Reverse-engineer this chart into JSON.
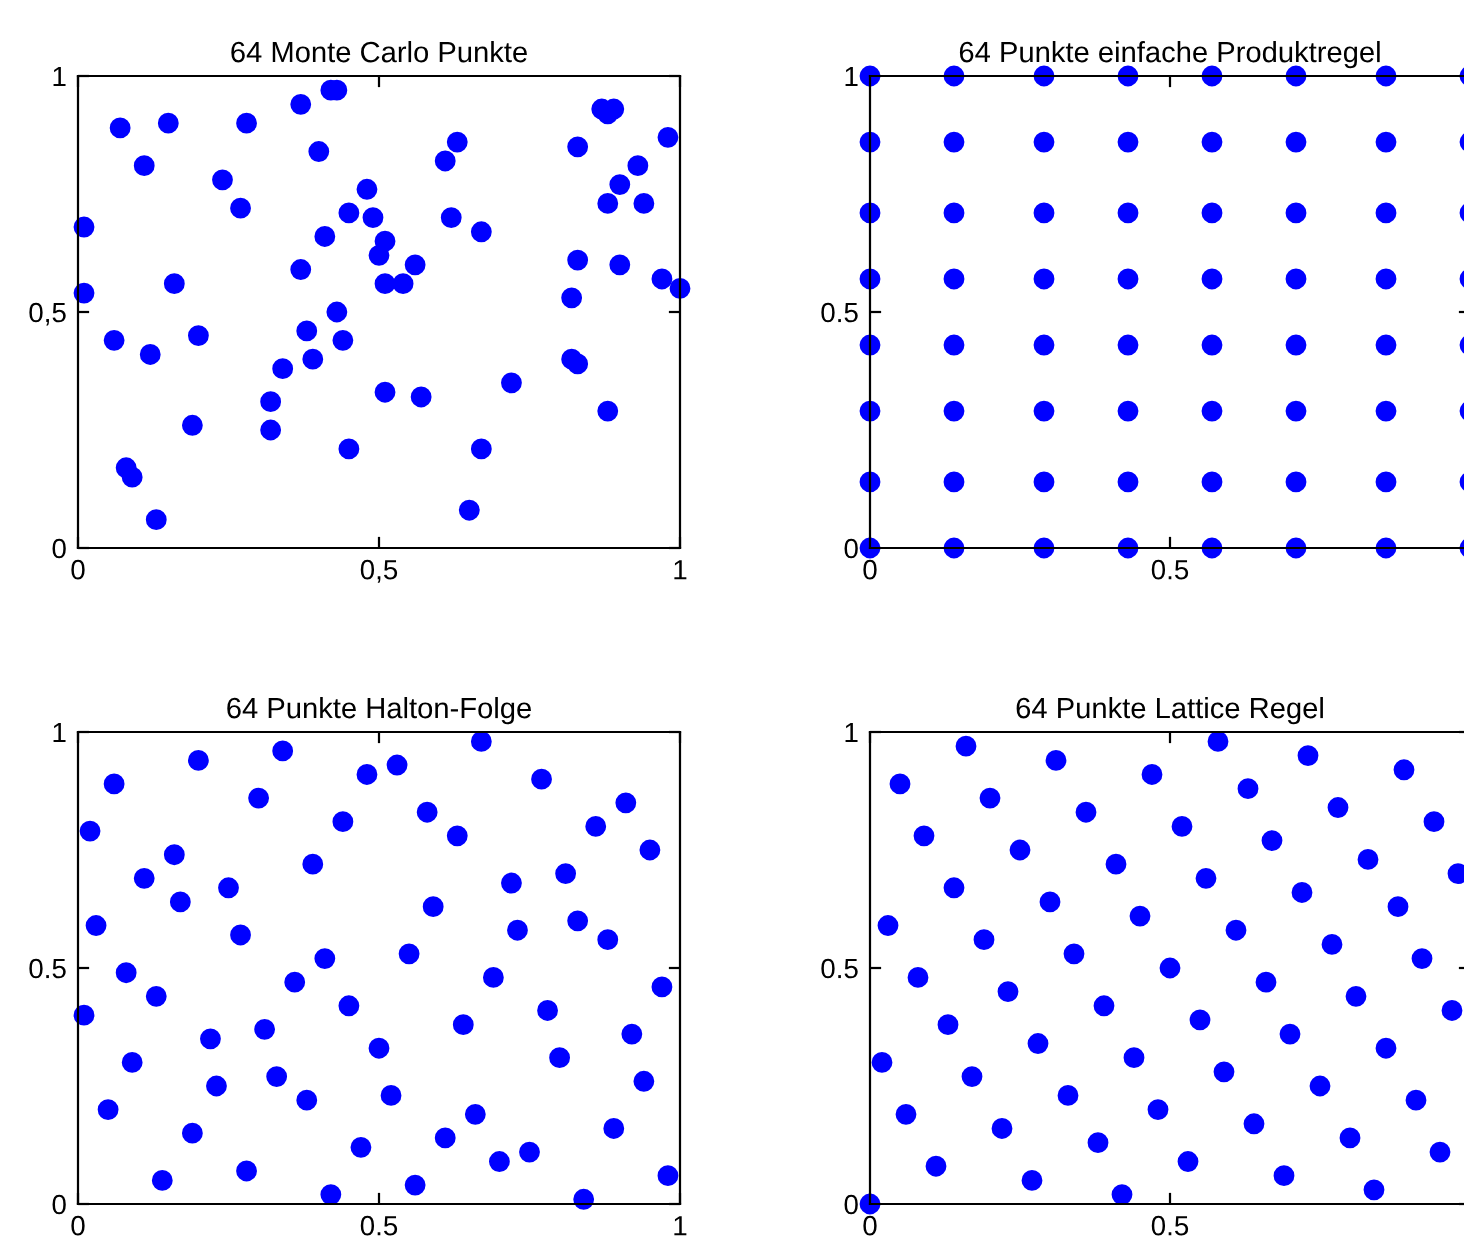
{
  "chart_data": [
    {
      "type": "scatter",
      "title": "64 Monte Carlo Punkte",
      "xlim": [
        0,
        1
      ],
      "ylim": [
        0,
        1
      ],
      "xticks": [
        0,
        {
          "value": 0.5,
          "label": "0,5"
        },
        1
      ],
      "yticks": [
        0,
        {
          "value": 0.5,
          "label": "0,5"
        },
        1
      ],
      "grid": false,
      "marker": "circle",
      "series": [
        {
          "color": "#0000ff",
          "x": [
            0.01,
            0.01,
            0.07,
            0.15,
            0.11,
            0.24,
            0.28,
            0.27,
            0.37,
            0.42,
            0.43,
            0.4,
            0.16,
            0.06,
            0.12,
            0.2,
            0.19,
            0.08,
            0.09,
            0.13,
            0.32,
            0.32,
            0.34,
            0.38,
            0.39,
            0.43,
            0.44,
            0.37,
            0.41,
            0.45,
            0.48,
            0.49,
            0.51,
            0.5,
            0.51,
            0.54,
            0.56,
            0.51,
            0.57,
            0.45,
            0.61,
            0.63,
            0.62,
            0.67,
            0.67,
            0.65,
            0.72,
            0.83,
            0.83,
            0.82,
            0.82,
            0.83,
            0.87,
            0.89,
            0.88,
            0.88,
            0.9,
            0.93,
            0.94,
            0.9,
            0.88,
            0.98,
            0.97,
            1.0
          ],
          "values": [
            0.68,
            0.54,
            0.89,
            0.9,
            0.81,
            0.78,
            0.9,
            0.72,
            0.94,
            0.97,
            0.97,
            0.84,
            0.56,
            0.44,
            0.41,
            0.45,
            0.26,
            0.17,
            0.15,
            0.06,
            0.31,
            0.25,
            0.38,
            0.46,
            0.4,
            0.5,
            0.44,
            0.59,
            0.66,
            0.71,
            0.76,
            0.7,
            0.65,
            0.62,
            0.56,
            0.56,
            0.6,
            0.33,
            0.32,
            0.21,
            0.82,
            0.86,
            0.7,
            0.67,
            0.21,
            0.08,
            0.35,
            0.85,
            0.61,
            0.53,
            0.4,
            0.39,
            0.93,
            0.93,
            0.92,
            0.73,
            0.77,
            0.81,
            0.73,
            0.6,
            0.29,
            0.87,
            0.57,
            0.55
          ]
        }
      ]
    },
    {
      "type": "scatter",
      "title": "64 Punkte einfache Produktregel",
      "xlim": [
        0,
        1
      ],
      "ylim": [
        0,
        1
      ],
      "xticks": [
        0,
        0.5
      ],
      "yticks": [
        0,
        0.5,
        1
      ],
      "grid": false,
      "marker": "circle",
      "series": [
        {
          "color": "#0000ff",
          "x": [
            0,
            0,
            0,
            0,
            0,
            0,
            0,
            0,
            0.14,
            0.14,
            0.14,
            0.14,
            0.14,
            0.14,
            0.14,
            0.14,
            0.29,
            0.29,
            0.29,
            0.29,
            0.29,
            0.29,
            0.29,
            0.29,
            0.43,
            0.43,
            0.43,
            0.43,
            0.43,
            0.43,
            0.43,
            0.43,
            0.57,
            0.57,
            0.57,
            0.57,
            0.57,
            0.57,
            0.57,
            0.57,
            0.71,
            0.71,
            0.71,
            0.71,
            0.71,
            0.71,
            0.71,
            0.71,
            0.86,
            0.86,
            0.86,
            0.86,
            0.86,
            0.86,
            0.86,
            0.86,
            1,
            1,
            1,
            1,
            1,
            1,
            1,
            1
          ],
          "values": [
            0,
            0.14,
            0.29,
            0.43,
            0.57,
            0.71,
            0.86,
            1,
            0,
            0.14,
            0.29,
            0.43,
            0.57,
            0.71,
            0.86,
            1,
            0,
            0.14,
            0.29,
            0.43,
            0.57,
            0.71,
            0.86,
            1,
            0,
            0.14,
            0.29,
            0.43,
            0.57,
            0.71,
            0.86,
            1,
            0,
            0.14,
            0.29,
            0.43,
            0.57,
            0.71,
            0.86,
            1,
            0,
            0.14,
            0.29,
            0.43,
            0.57,
            0.71,
            0.86,
            1,
            0,
            0.14,
            0.29,
            0.43,
            0.57,
            0.71,
            0.86,
            1,
            0,
            0.14,
            0.29,
            0.43,
            0.57,
            0.71,
            0.86,
            1
          ]
        }
      ]
    },
    {
      "type": "scatter",
      "title": "64 Punkte Halton-Folge",
      "xlim": [
        0,
        1
      ],
      "ylim": [
        0,
        1
      ],
      "xticks": [
        0,
        0.5,
        1
      ],
      "yticks": [
        0,
        0.5,
        1
      ],
      "grid": false,
      "marker": "circle",
      "series": [
        {
          "color": "#0000ff",
          "x": [
            0.5,
            0.25,
            0.75,
            0.13,
            0.63,
            0.38,
            0.88,
            0.06,
            0.56,
            0.31,
            0.81,
            0.19,
            0.69,
            0.44,
            0.94,
            0.03,
            0.53,
            0.28,
            0.78,
            0.16,
            0.66,
            0.41,
            0.91,
            0.09,
            0.59,
            0.34,
            0.84,
            0.22,
            0.72,
            0.47,
            0.97,
            0.02,
            0.52,
            0.27,
            0.77,
            0.14,
            0.64,
            0.39,
            0.89,
            0.08,
            0.58,
            0.33,
            0.83,
            0.2,
            0.7,
            0.45,
            0.95,
            0.05,
            0.55,
            0.3,
            0.8,
            0.17,
            0.67,
            0.42,
            0.92,
            0.11,
            0.61,
            0.36,
            0.86,
            0.23,
            0.73,
            0.48,
            0.98,
            0.01
          ],
          "values": [
            0.33,
            0.67,
            0.11,
            0.44,
            0.78,
            0.22,
            0.56,
            0.89,
            0.04,
            0.37,
            0.7,
            0.15,
            0.48,
            0.81,
            0.26,
            0.59,
            0.93,
            0.07,
            0.41,
            0.74,
            0.19,
            0.52,
            0.85,
            0.3,
            0.63,
            0.96,
            0.01,
            0.35,
            0.68,
            0.12,
            0.46,
            0.79,
            0.23,
            0.57,
            0.9,
            0.05,
            0.38,
            0.72,
            0.16,
            0.49,
            0.83,
            0.27,
            0.6,
            0.94,
            0.09,
            0.42,
            0.75,
            0.2,
            0.53,
            0.86,
            0.31,
            0.64,
            0.98,
            0.02,
            0.36,
            0.69,
            0.14,
            0.47,
            0.8,
            0.25,
            0.58,
            0.91,
            0.06,
            0.4
          ]
        }
      ]
    },
    {
      "type": "scatter",
      "title": "64 Punkte Lattice Regel",
      "xlim": [
        0,
        1
      ],
      "ylim": [
        0,
        1
      ],
      "xticks": [
        0,
        0.5
      ],
      "yticks": [
        0,
        0.5,
        1
      ],
      "grid": false,
      "marker": "circle",
      "series": [
        {
          "color": "#0000ff",
          "x": [
            0,
            0.02,
            0.03,
            0.05,
            0.06,
            0.08,
            0.09,
            0.11,
            0.13,
            0.14,
            0.16,
            0.17,
            0.19,
            0.2,
            0.22,
            0.23,
            0.25,
            0.27,
            0.28,
            0.3,
            0.31,
            0.33,
            0.34,
            0.36,
            0.38,
            0.39,
            0.41,
            0.42,
            0.44,
            0.45,
            0.47,
            0.48,
            0.5,
            0.52,
            0.53,
            0.55,
            0.56,
            0.58,
            0.59,
            0.61,
            0.63,
            0.64,
            0.66,
            0.67,
            0.69,
            0.7,
            0.72,
            0.73,
            0.75,
            0.77,
            0.78,
            0.8,
            0.81,
            0.83,
            0.84,
            0.86,
            0.88,
            0.89,
            0.91,
            0.92,
            0.94,
            0.95,
            0.97,
            0.98
          ],
          "values": [
            0,
            0.3,
            0.59,
            0.89,
            0.19,
            0.48,
            0.78,
            0.08,
            0.38,
            0.67,
            0.97,
            0.27,
            0.56,
            0.86,
            0.16,
            0.45,
            0.75,
            0.05,
            0.34,
            0.64,
            0.94,
            0.23,
            0.53,
            0.83,
            0.13,
            0.42,
            0.72,
            0.02,
            0.31,
            0.61,
            0.91,
            0.2,
            0.5,
            0.8,
            0.09,
            0.39,
            0.69,
            0.98,
            0.28,
            0.58,
            0.88,
            0.17,
            0.47,
            0.77,
            0.06,
            0.36,
            0.66,
            0.95,
            0.25,
            0.55,
            0.84,
            0.14,
            0.44,
            0.73,
            0.03,
            0.33,
            0.63,
            0.92,
            0.22,
            0.52,
            0.81,
            0.11,
            0.41,
            0.7
          ]
        }
      ]
    }
  ]
}
